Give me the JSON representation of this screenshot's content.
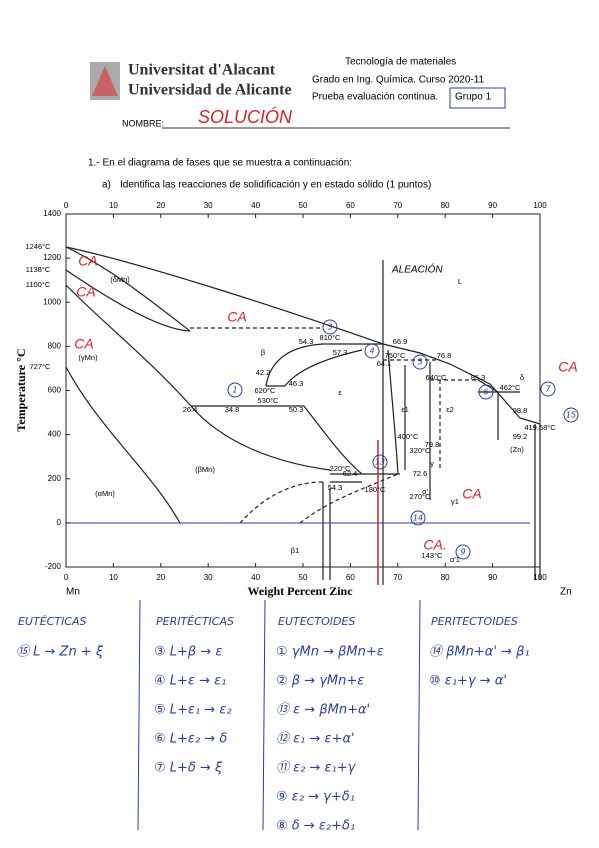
{
  "header": {
    "university_ca": "Universitat d'Alacant",
    "university_es": "Universidad de Alicante",
    "course": "Tecnología de materiales",
    "degree": "Grado en Ing. Química. Curso 2020-11",
    "exam": "Prueba evaluación continua.",
    "group": "Grupo 1",
    "name_label": "NOMBRE:",
    "name_value": "SOLUCIÓN"
  },
  "question": {
    "title": "1.- En el diagrama de fases que se muestra a continuación:",
    "item_letter": "a)",
    "item_text": "Identifica las reacciones de solidificación y en estado sólido (1 puntos)"
  },
  "diagram": {
    "xlim": [
      0,
      100
    ],
    "ylim": [
      -200,
      1400
    ],
    "xticks": [
      0,
      10,
      20,
      30,
      40,
      50,
      60,
      70,
      80,
      90,
      100
    ],
    "top_xticks": [
      0,
      10,
      20,
      30,
      40,
      50,
      60,
      70,
      80,
      90,
      100
    ],
    "yticks": [
      -200,
      0,
      200,
      400,
      600,
      800,
      1000,
      1200,
      1400
    ],
    "x_label": "Weight Percent Zinc",
    "y_label": "Temperature °C",
    "left_element": "Mn",
    "right_element": "Zn",
    "labels": [
      "1246°C",
      "1138°C",
      "1100°C",
      "727°C",
      "(δMn)",
      "(γMn)",
      "(βMn)",
      "(αMn)",
      "β",
      "ε",
      "ε1",
      "ε2",
      "γ",
      "δ",
      "L",
      "α'",
      "β1",
      "γ1",
      "α'1",
      "(Zn)",
      "54.3",
      "810°C",
      "66.9",
      "57.3",
      "64.1",
      "750°C",
      "76.8",
      "640°C",
      "85.3",
      "462°C",
      "98.8",
      "99.2",
      "419.58°C",
      "42.2",
      "46.3",
      "620°C",
      "530°C",
      "26.4",
      "34.8",
      "50.3",
      "62.4",
      "220°C",
      "54.3",
      "72.6",
      "270°C",
      "180°C",
      "143°C",
      "400°C",
      "320°C",
      "79.8"
    ],
    "red_notes": [
      "CA",
      "CA",
      "CA",
      "CA",
      "CA",
      "CA",
      "CA."
    ],
    "alloy_note": "ALEACIÓN",
    "circled": [
      "1",
      "3",
      "4",
      "5",
      "6",
      "7",
      "13",
      "15",
      "9",
      "14"
    ]
  },
  "reactions": {
    "columns": [
      {
        "title": "EUTÉCTICAS",
        "items": [
          "⑮ L → Zn + ξ"
        ]
      },
      {
        "title": "PERITÉCTICAS",
        "items": [
          "③ L+β → ε",
          "④ L+ε → ε₁",
          "⑤ L+ε₁ → ε₂",
          "⑥ L+ε₂ → δ",
          "⑦ L+δ → ξ"
        ]
      },
      {
        "title": "EUTECTOIDES",
        "items": [
          "① γMn → βMn+ε",
          "② β → γMn+ε",
          "⑬ ε → βMn+α'",
          "⑫ ε₁ → ε+α'",
          "⑪ ε₂ → ε₁+γ",
          "⑨ ε₂ → γ+δ₁",
          "⑧ δ → ε₂+δ₁"
        ]
      },
      {
        "title": "PERITECTOIDES",
        "items": [
          "⑭ βMn+α' → β₁",
          "⑩ ε₁+γ → α'"
        ]
      }
    ]
  }
}
